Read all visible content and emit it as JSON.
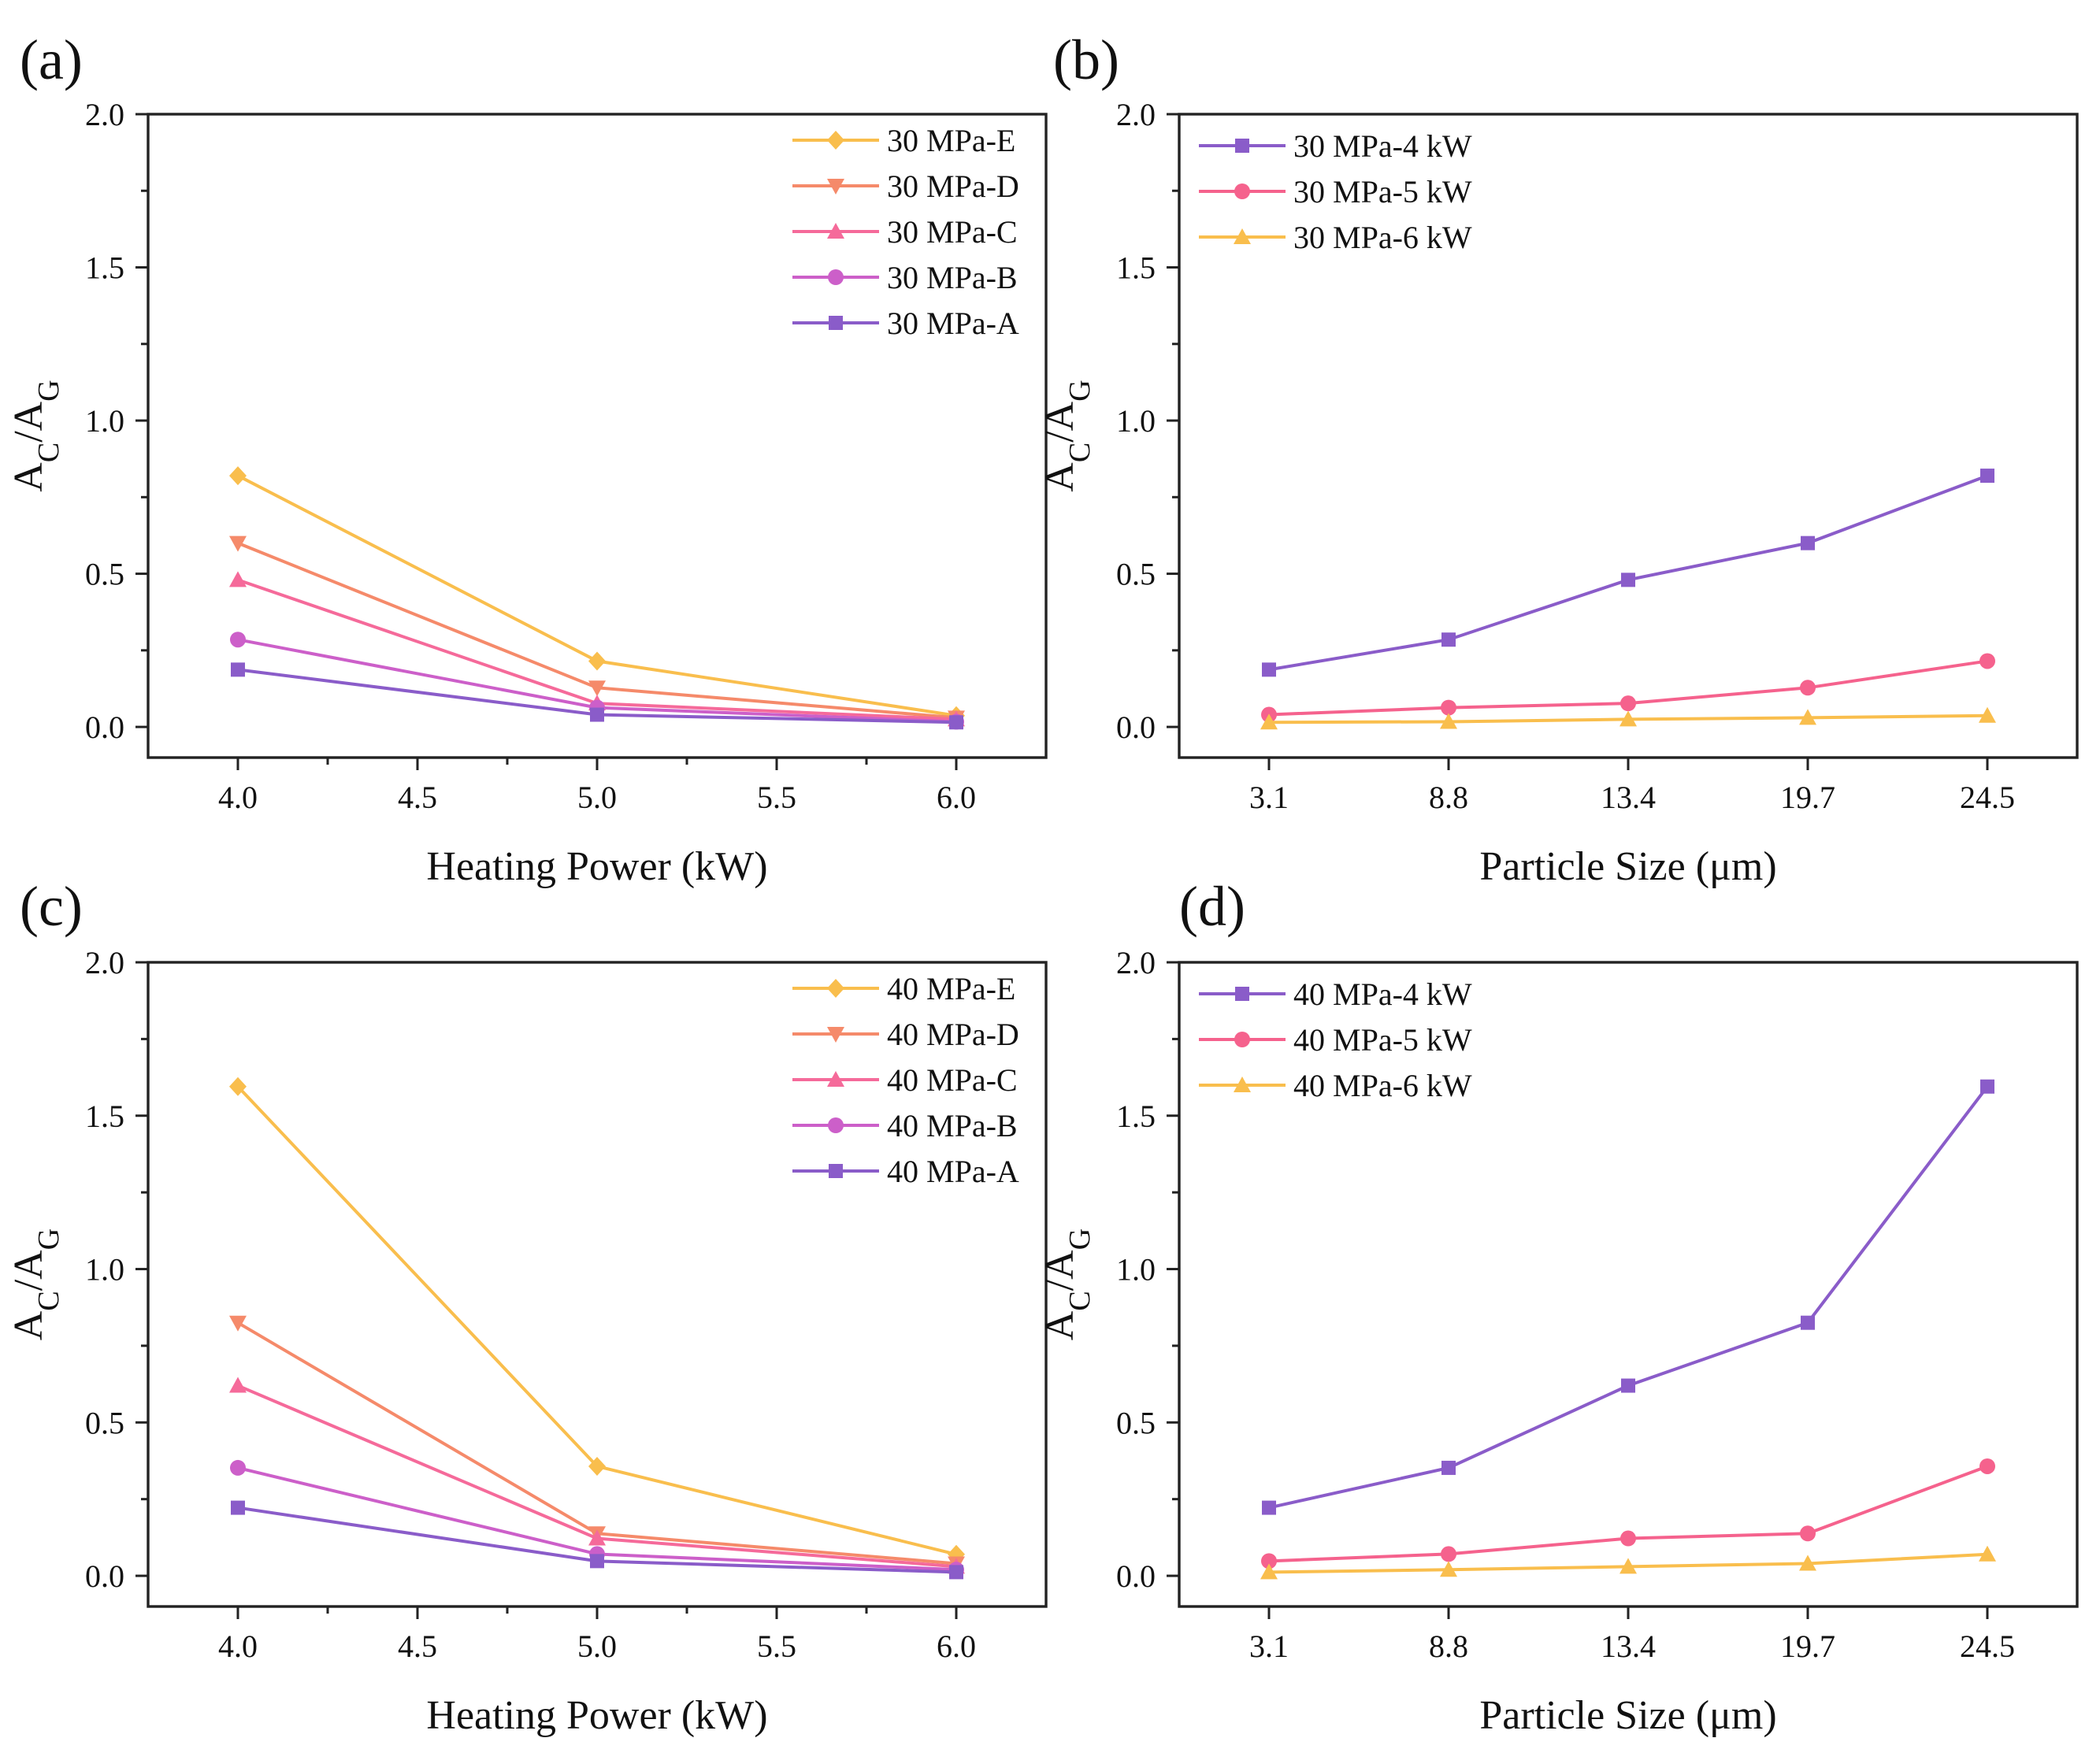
{
  "figure": {
    "colors": {
      "A": "#8a5cc9",
      "B": "#cc5fc9",
      "C": "#f56a9a",
      "D": "#f58a6a",
      "E": "#f9be4d",
      "kw4": "#8a5cc9",
      "kw5": "#f5628d",
      "kw6": "#f9be4d"
    }
  },
  "chart_data": [
    {
      "panel": "(a)",
      "type": "line",
      "title": "",
      "xlabel": "Heating Power (kW)",
      "ylabel": "A_C/A_G",
      "xlim": [
        3.75,
        6.25
      ],
      "ylim": [
        -0.1,
        2.0
      ],
      "xticks": [
        "4.0",
        "4.5",
        "5.0",
        "5.5",
        "6.0"
      ],
      "yticks": [
        "0.0",
        "0.5",
        "1.0",
        "1.5",
        "2.0"
      ],
      "legend_position": "top-right",
      "x": [
        4.0,
        5.0,
        6.0
      ],
      "series": [
        {
          "name": "30 MPa-E",
          "marker": "diamond",
          "color": "#f9be4d",
          "values": [
            0.82,
            0.215,
            0.037
          ]
        },
        {
          "name": "30 MPa-D",
          "marker": "triangle-down",
          "color": "#f58a6a",
          "values": [
            0.6,
            0.128,
            0.03
          ]
        },
        {
          "name": "30 MPa-C",
          "marker": "triangle-up",
          "color": "#f56a9a",
          "values": [
            0.48,
            0.077,
            0.025
          ]
        },
        {
          "name": "30 MPa-B",
          "marker": "circle",
          "color": "#cc5fc9",
          "values": [
            0.285,
            0.063,
            0.017
          ]
        },
        {
          "name": "30 MPa-A",
          "marker": "square",
          "color": "#8a5cc9",
          "values": [
            0.187,
            0.04,
            0.015
          ]
        }
      ]
    },
    {
      "panel": "(b)",
      "type": "line",
      "title": "",
      "xlabel": "Particle Size (μm)",
      "ylabel": "A_C/A_G",
      "categories": [
        "3.1",
        "8.8",
        "13.4",
        "19.7",
        "24.5"
      ],
      "ylim": [
        -0.1,
        2.0
      ],
      "yticks": [
        "0.0",
        "0.5",
        "1.0",
        "1.5",
        "2.0"
      ],
      "legend_position": "top-left",
      "series": [
        {
          "name": "30 MPa-4 kW",
          "marker": "square",
          "color": "#8a5cc9",
          "values": [
            0.187,
            0.285,
            0.48,
            0.6,
            0.82
          ]
        },
        {
          "name": "30 MPa-5 kW",
          "marker": "circle",
          "color": "#f5628d",
          "values": [
            0.04,
            0.063,
            0.077,
            0.128,
            0.215
          ]
        },
        {
          "name": "30 MPa-6 kW",
          "marker": "triangle-up",
          "color": "#f9be4d",
          "values": [
            0.015,
            0.017,
            0.025,
            0.03,
            0.037
          ]
        }
      ]
    },
    {
      "panel": "(c)",
      "type": "line",
      "title": "",
      "xlabel": "Heating Power (kW)",
      "ylabel": "A_C/A_G",
      "xlim": [
        3.75,
        6.25
      ],
      "ylim": [
        -0.1,
        2.0
      ],
      "xticks": [
        "4.0",
        "4.5",
        "5.0",
        "5.5",
        "6.0"
      ],
      "yticks": [
        "0.0",
        "0.5",
        "1.0",
        "1.5",
        "2.0"
      ],
      "legend_position": "top-right",
      "x": [
        4.0,
        5.0,
        6.0
      ],
      "series": [
        {
          "name": "40 MPa-E",
          "marker": "diamond",
          "color": "#f9be4d",
          "values": [
            1.595,
            0.357,
            0.07
          ]
        },
        {
          "name": "40 MPa-D",
          "marker": "triangle-down",
          "color": "#f58a6a",
          "values": [
            0.825,
            0.138,
            0.04
          ]
        },
        {
          "name": "40 MPa-C",
          "marker": "triangle-up",
          "color": "#f56a9a",
          "values": [
            0.62,
            0.122,
            0.03
          ]
        },
        {
          "name": "40 MPa-B",
          "marker": "circle",
          "color": "#cc5fc9",
          "values": [
            0.352,
            0.071,
            0.02
          ]
        },
        {
          "name": "40 MPa-A",
          "marker": "square",
          "color": "#8a5cc9",
          "values": [
            0.222,
            0.048,
            0.012
          ]
        }
      ]
    },
    {
      "panel": "(d)",
      "type": "line",
      "title": "",
      "xlabel": "Particle Size (μm)",
      "ylabel": "A_C/A_G",
      "categories": [
        "3.1",
        "8.8",
        "13.4",
        "19.7",
        "24.5"
      ],
      "ylim": [
        -0.1,
        2.0
      ],
      "yticks": [
        "0.0",
        "0.5",
        "1.0",
        "1.5",
        "2.0"
      ],
      "legend_position": "top-left",
      "series": [
        {
          "name": "40 MPa-4 kW",
          "marker": "square",
          "color": "#8a5cc9",
          "values": [
            0.222,
            0.352,
            0.62,
            0.825,
            1.595
          ]
        },
        {
          "name": "40 MPa-5 kW",
          "marker": "circle",
          "color": "#f5628d",
          "values": [
            0.048,
            0.071,
            0.122,
            0.138,
            0.357
          ]
        },
        {
          "name": "40 MPa-6 kW",
          "marker": "triangle-up",
          "color": "#f9be4d",
          "values": [
            0.012,
            0.02,
            0.03,
            0.04,
            0.07
          ]
        }
      ]
    }
  ]
}
